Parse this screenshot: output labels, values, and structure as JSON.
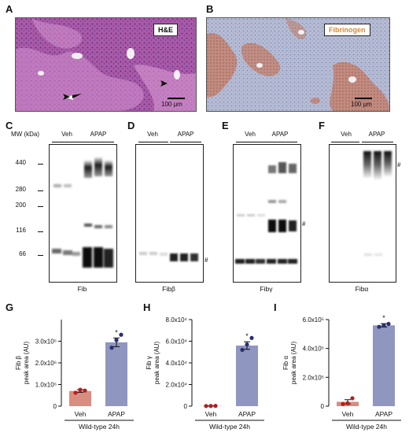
{
  "panels": {
    "A": {
      "letter": "A",
      "tag": "H&E",
      "scale": "100 µm"
    },
    "B": {
      "letter": "B",
      "tag": "Fibrinogen",
      "scale": "100 µm"
    },
    "C": {
      "letter": "C",
      "mw_header": "MW (kDa)",
      "caption": "Fib"
    },
    "D": {
      "letter": "D",
      "caption": "Fibβ"
    },
    "E": {
      "letter": "E",
      "caption": "Fibγ"
    },
    "F": {
      "letter": "F",
      "caption": "Fibα"
    },
    "G": {
      "letter": "G"
    },
    "H": {
      "letter": "H"
    },
    "I": {
      "letter": "I"
    }
  },
  "blot_groups": {
    "veh": "Veh",
    "apap": "APAP"
  },
  "mw_markers": [
    "440",
    "280",
    "200",
    "116",
    "66"
  ],
  "hash_mark": "#",
  "colors": {
    "veh_bar": "#d98c80",
    "apap_bar": "#8f96bf",
    "he_bg": "#b96fb8",
    "ihc_bg": "#9aa4c4",
    "ihc_stain": "#b06a55"
  },
  "chart_data": [
    {
      "type": "bar",
      "ylabel_line1": "Fib β",
      "ylabel_line2": "peak area (AU)",
      "categories": [
        "Veh",
        "APAP"
      ],
      "values": [
        700000,
        2950000
      ],
      "errors": [
        60000,
        200000
      ],
      "points": [
        [
          620000,
          760000,
          720000
        ],
        [
          2700000,
          3050000,
          3300000
        ]
      ],
      "ylim": [
        0,
        4000000
      ],
      "yticks": [
        "0",
        "1.0x10⁶",
        "2.0x10⁶",
        "3.0x10⁶"
      ],
      "ytick_values": [
        0,
        1000000,
        2000000,
        3000000
      ],
      "star": "*",
      "xgroup_label": "Wild-type 24h"
    },
    {
      "type": "bar",
      "ylabel_line1": "Fib γ",
      "ylabel_line2": "peak area (AU)",
      "categories": [
        "Veh",
        "APAP"
      ],
      "values": [
        200,
        56000
      ],
      "errors": [
        100,
        3500
      ],
      "points": [
        [
          150,
          200,
          250
        ],
        [
          52000,
          57000,
          63000
        ]
      ],
      "ylim": [
        0,
        80000
      ],
      "yticks": [
        "0",
        "2.0x10⁴",
        "4.0x10⁴",
        "6.0x10⁴",
        "8.0x10⁴"
      ],
      "ytick_values": [
        0,
        20000,
        40000,
        60000,
        80000
      ],
      "star": "*",
      "xgroup_label": "Wild-type 24h"
    },
    {
      "type": "bar",
      "ylabel_line1": "Fib α",
      "ylabel_line2": "peak area (AU)",
      "categories": [
        "Veh",
        "APAP"
      ],
      "values": [
        30000,
        560000
      ],
      "errors": [
        15000,
        12000
      ],
      "points": [
        [
          15000,
          20000,
          55000
        ],
        [
          550000,
          560000,
          570000
        ]
      ],
      "ylim": [
        0,
        600000
      ],
      "yticks": [
        "0",
        "2.0x10⁵",
        "4.0x10⁵",
        "6.0x10⁵"
      ],
      "ytick_values": [
        0,
        200000,
        400000,
        600000
      ],
      "star": "*",
      "xgroup_label": "Wild-type 24h"
    }
  ]
}
